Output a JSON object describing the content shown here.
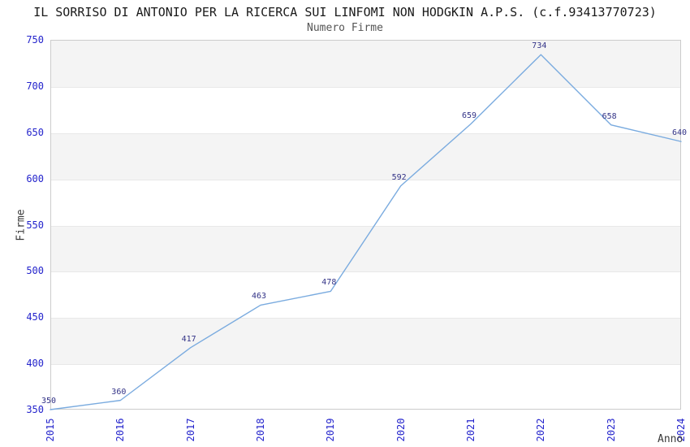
{
  "chart_data": {
    "type": "line",
    "title": "IL SORRISO DI ANTONIO PER LA RICERCA SUI LINFOMI NON HODGKIN A.P.S. (c.f.93413770723)",
    "subtitle": "Numero Firme",
    "xlabel": "Anno",
    "ylabel": "Firme",
    "categories": [
      "2015",
      "2016",
      "2017",
      "2018",
      "2019",
      "2020",
      "2021",
      "2022",
      "2023",
      "2024"
    ],
    "series": [
      {
        "name": "Numero Firme",
        "values": [
          350,
          360,
          417,
          463,
          478,
          592,
          659,
          734,
          658,
          640
        ]
      }
    ],
    "ylim": [
      350,
      750
    ],
    "ytick_step": 50,
    "yticks": [
      350,
      400,
      450,
      500,
      550,
      600,
      650,
      700,
      750
    ],
    "data_labels": true,
    "legend": "none",
    "grid": "horizontal-bands",
    "x_tick_rotation": 90,
    "colors": {
      "line": "#7aabdf",
      "axis_tick_label": "#2424cc",
      "data_label": "#333387",
      "band_fill": "#f4f4f4",
      "gridline": "#e8e8e8",
      "plot_border": "#cccccc",
      "title": "#1a1a1a",
      "subtitle": "#555555",
      "axis_title": "#3a3a3a"
    }
  }
}
